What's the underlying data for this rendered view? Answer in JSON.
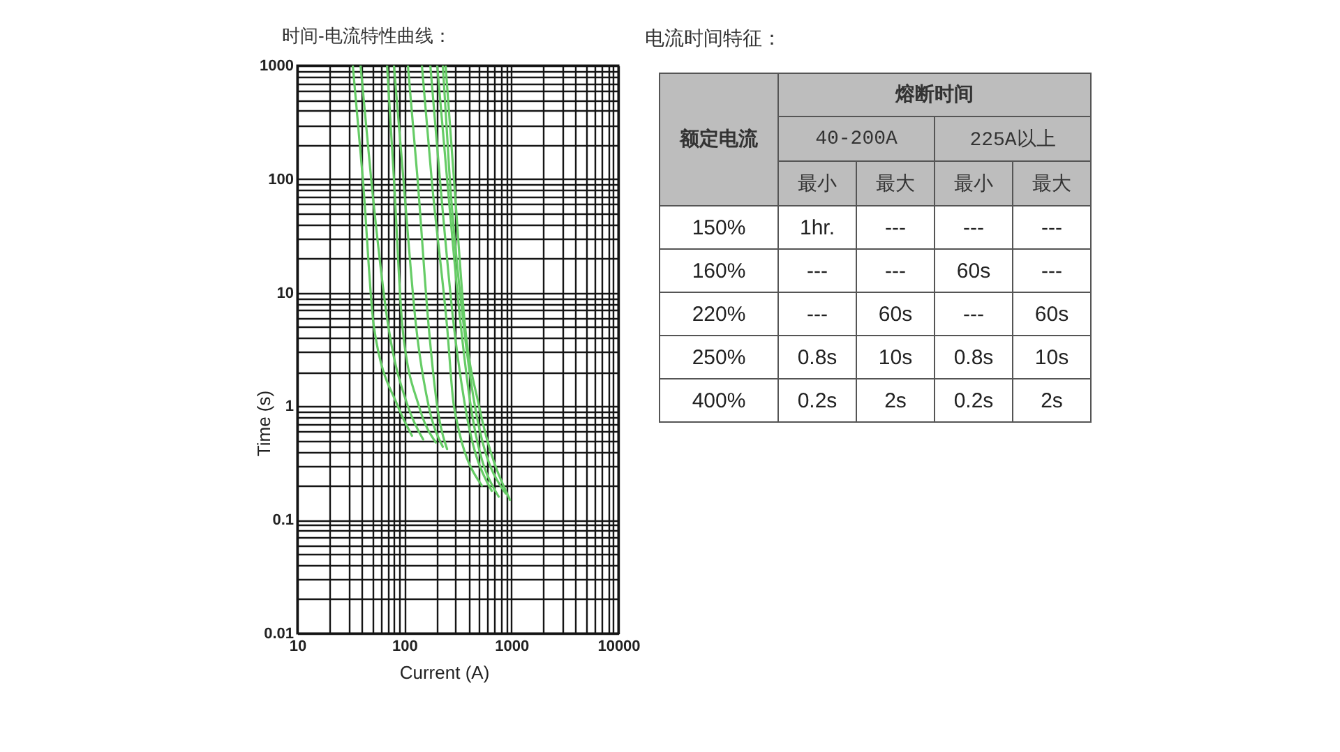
{
  "chart_data": [
    {
      "type": "line",
      "title": "时间-电流特性曲线：",
      "xlabel": "Current (A)",
      "ylabel": "Time (s)",
      "log": "xy",
      "grid": true,
      "marker": "none",
      "line_style": "solid",
      "xlim": [
        10,
        10000
      ],
      "ylim": [
        0.01,
        1000
      ],
      "xticks": [
        10,
        {
          "value": 20,
          "label": null
        },
        {
          "value": 30,
          "label": null
        },
        {
          "value": 40,
          "label": null
        },
        {
          "value": 50,
          "label": null
        },
        {
          "value": 60,
          "label": null
        },
        {
          "value": 70,
          "label": null
        },
        {
          "value": 80,
          "label": null
        },
        {
          "value": 90,
          "label": null
        },
        100,
        {
          "value": 200,
          "label": null
        },
        {
          "value": 300,
          "label": null
        },
        {
          "value": 400,
          "label": null
        },
        {
          "value": 500,
          "label": null
        },
        {
          "value": 600,
          "label": null
        },
        {
          "value": 700,
          "label": null
        },
        {
          "value": 800,
          "label": null
        },
        {
          "value": 900,
          "label": null
        },
        1000,
        {
          "value": 2000,
          "label": null
        },
        {
          "value": 3000,
          "label": null
        },
        {
          "value": 4000,
          "label": null
        },
        {
          "value": 5000,
          "label": null
        },
        {
          "value": 6000,
          "label": null
        },
        {
          "value": 7000,
          "label": null
        },
        {
          "value": 8000,
          "label": null
        },
        {
          "value": 9000,
          "label": null
        },
        10000
      ],
      "yticks": [
        0.01,
        {
          "value": 0.02,
          "label": null
        },
        {
          "value": 0.03,
          "label": null
        },
        {
          "value": 0.04,
          "label": null
        },
        {
          "value": 0.05,
          "label": null
        },
        {
          "value": 0.06,
          "label": null
        },
        {
          "value": 0.07,
          "label": null
        },
        {
          "value": 0.08,
          "label": null
        },
        {
          "value": 0.09,
          "label": null
        },
        0.1,
        {
          "value": 0.2,
          "label": null
        },
        {
          "value": 0.3,
          "label": null
        },
        {
          "value": 0.4,
          "label": null
        },
        {
          "value": 0.5,
          "label": null
        },
        {
          "value": 0.6,
          "label": null
        },
        {
          "value": 0.7,
          "label": null
        },
        {
          "value": 0.8,
          "label": null
        },
        {
          "value": 0.9,
          "label": null
        },
        1,
        {
          "value": 2,
          "label": null
        },
        {
          "value": 3,
          "label": null
        },
        {
          "value": 4,
          "label": null
        },
        {
          "value": 5,
          "label": null
        },
        {
          "value": 6,
          "label": null
        },
        {
          "value": 7,
          "label": null
        },
        {
          "value": 8,
          "label": null
        },
        {
          "value": 9,
          "label": null
        },
        10,
        {
          "value": 20,
          "label": null
        },
        {
          "value": 30,
          "label": null
        },
        {
          "value": 40,
          "label": null
        },
        {
          "value": 50,
          "label": null
        },
        {
          "value": 60,
          "label": null
        },
        {
          "value": 70,
          "label": null
        },
        {
          "value": 80,
          "label": null
        },
        {
          "value": 90,
          "label": null
        },
        100,
        {
          "value": 200,
          "label": null
        },
        {
          "value": 300,
          "label": null
        },
        {
          "value": 400,
          "label": null
        },
        {
          "value": 500,
          "label": null
        },
        {
          "value": 600,
          "label": null
        },
        {
          "value": 700,
          "label": null
        },
        {
          "value": 800,
          "label": null
        },
        {
          "value": 900,
          "label": null
        },
        1000
      ],
      "series": [
        {
          "color": "#66cc66",
          "x": [
            33,
            41,
            52,
            87,
            118
          ],
          "values": [
            1000,
            100,
            5,
            1,
            0.55
          ]
        },
        {
          "color": "#66cc66",
          "x": [
            39,
            49,
            71,
            108,
            150
          ],
          "values": [
            1000,
            100,
            5,
            1,
            0.51
          ]
        },
        {
          "color": "#66cc66",
          "x": [
            69,
            80,
            96,
            137,
            197
          ],
          "values": [
            1000,
            100,
            5,
            1,
            0.48
          ]
        },
        {
          "color": "#66cc66",
          "x": [
            80,
            98,
            129,
            169,
            229
          ],
          "values": [
            1000,
            100,
            5,
            1,
            0.44
          ]
        },
        {
          "color": "#66cc66",
          "x": [
            108,
            133,
            169,
            203,
            251
          ],
          "values": [
            1000,
            100,
            5,
            1,
            0.42
          ]
        },
        {
          "color": "#66cc66",
          "x": [
            146,
            180,
            251,
            291,
            531
          ],
          "values": [
            1000,
            100,
            5,
            1,
            0.2
          ]
        },
        {
          "color": "#66cc66",
          "x": [
            175,
            215,
            291,
            370,
            656
          ],
          "values": [
            1000,
            100,
            5,
            1,
            0.18
          ]
        },
        {
          "color": "#66cc66",
          "x": [
            203,
            251,
            338,
            418,
            762
          ],
          "values": [
            1000,
            100,
            5,
            1,
            0.16
          ]
        },
        {
          "color": "#66cc66",
          "x": [
            229,
            266,
            360,
            457,
            887
          ],
          "values": [
            1000,
            100,
            5,
            1,
            0.17
          ]
        },
        {
          "color": "#66cc66",
          "x": [
            243,
            291,
            370,
            500,
            970
          ],
          "values": [
            1000,
            100,
            5,
            1,
            0.15
          ]
        }
      ]
    },
    {
      "type": "other",
      "title": "电流时间特征：",
      "ylabel": "额定电流",
      "xlabel": "熔断时间",
      "annotations": [
        "40-200A",
        "225A以上"
      ],
      "categories": [
        "最小",
        "最大",
        "最小",
        "最大"
      ],
      "y_categories": [
        "150%",
        "160%",
        "220%",
        "250%",
        "400%"
      ],
      "cell_labels": [
        [
          "1hr.",
          "---",
          "---",
          "---"
        ],
        [
          "---",
          "---",
          "60s",
          "---"
        ],
        [
          "---",
          "60s",
          "---",
          "60s"
        ],
        [
          "0.8s",
          "10s",
          "0.8s",
          "10s"
        ],
        [
          "0.2s",
          "2s",
          "0.2s",
          "2s"
        ]
      ]
    }
  ]
}
